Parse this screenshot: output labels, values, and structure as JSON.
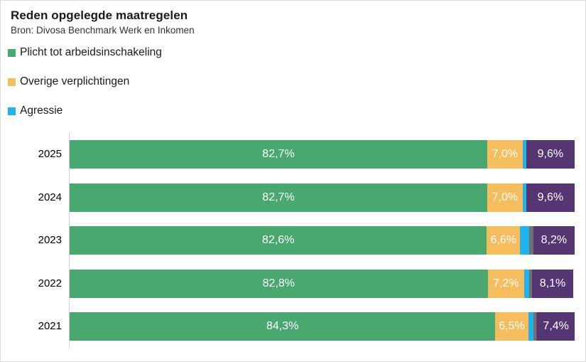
{
  "header": {
    "title": "Reden opgelegde maatregelen",
    "source": "Bron: Divosa Benchmark Werk en Inkomen"
  },
  "legend": {
    "position": "top-left",
    "items": [
      {
        "label": "Plicht tot arbeidsinschakeling",
        "color": "#48a870"
      },
      {
        "label": "Overige verplichtingen",
        "color": "#f6bd5e"
      },
      {
        "label": "Agressie",
        "color": "#20b2e8"
      }
    ]
  },
  "chart_data": {
    "type": "bar",
    "orientation": "horizontal",
    "stacked": true,
    "title": "Reden opgelegde maatregelen",
    "subtitle": "Bron: Divosa Benchmark Werk en Inkomen",
    "categories": [
      "2025",
      "2024",
      "2023",
      "2022",
      "2021"
    ],
    "xlim": [
      0,
      100
    ],
    "unit": "%",
    "grid": false,
    "legend_position": "top-left",
    "series": [
      {
        "key": "plicht-tot-arbeidsinschakeling",
        "name": "Plicht tot arbeidsinschakeling",
        "color": "#48a870",
        "in_legend": true,
        "values": [
          82.7,
          82.7,
          82.6,
          82.8,
          84.3
        ],
        "labels": [
          "82,7%",
          "82,7%",
          "82,6%",
          "82,8%",
          "84,3%"
        ]
      },
      {
        "key": "overige-verplichtingen",
        "name": "Overige verplichtingen",
        "color": "#f6bd5e",
        "in_legend": true,
        "values": [
          7.0,
          7.0,
          6.6,
          7.2,
          6.5
        ],
        "labels": [
          "7,0%",
          "7,0%",
          "6,6%",
          "7,2%",
          "6,5%"
        ]
      },
      {
        "key": "agressie",
        "name": "Agressie",
        "color": "#20b2e8",
        "in_legend": true,
        "values": [
          0.7,
          0.7,
          1.8,
          1.0,
          1.0
        ],
        "labels": [
          "",
          "",
          "",
          "",
          ""
        ]
      },
      {
        "key": "unlabeled-gray",
        "name": "",
        "color": "#717074",
        "in_legend": false,
        "values": [
          0,
          0,
          0.8,
          0.5,
          0.6
        ],
        "labels": [
          "",
          "",
          "",
          "",
          ""
        ]
      },
      {
        "key": "unlabeled-red",
        "name": "",
        "color": "#8e3b3b",
        "in_legend": false,
        "values": [
          0,
          0,
          0,
          0.1,
          0.2
        ],
        "labels": [
          "",
          "",
          "",
          "",
          ""
        ]
      },
      {
        "key": "unlabeled-purple",
        "name": "",
        "color": "#553673",
        "in_legend": false,
        "values": [
          9.6,
          9.6,
          8.2,
          8.1,
          7.4
        ],
        "labels": [
          "9,6%",
          "9,6%",
          "8,2%",
          "8,1%",
          "7,4%"
        ]
      }
    ]
  }
}
